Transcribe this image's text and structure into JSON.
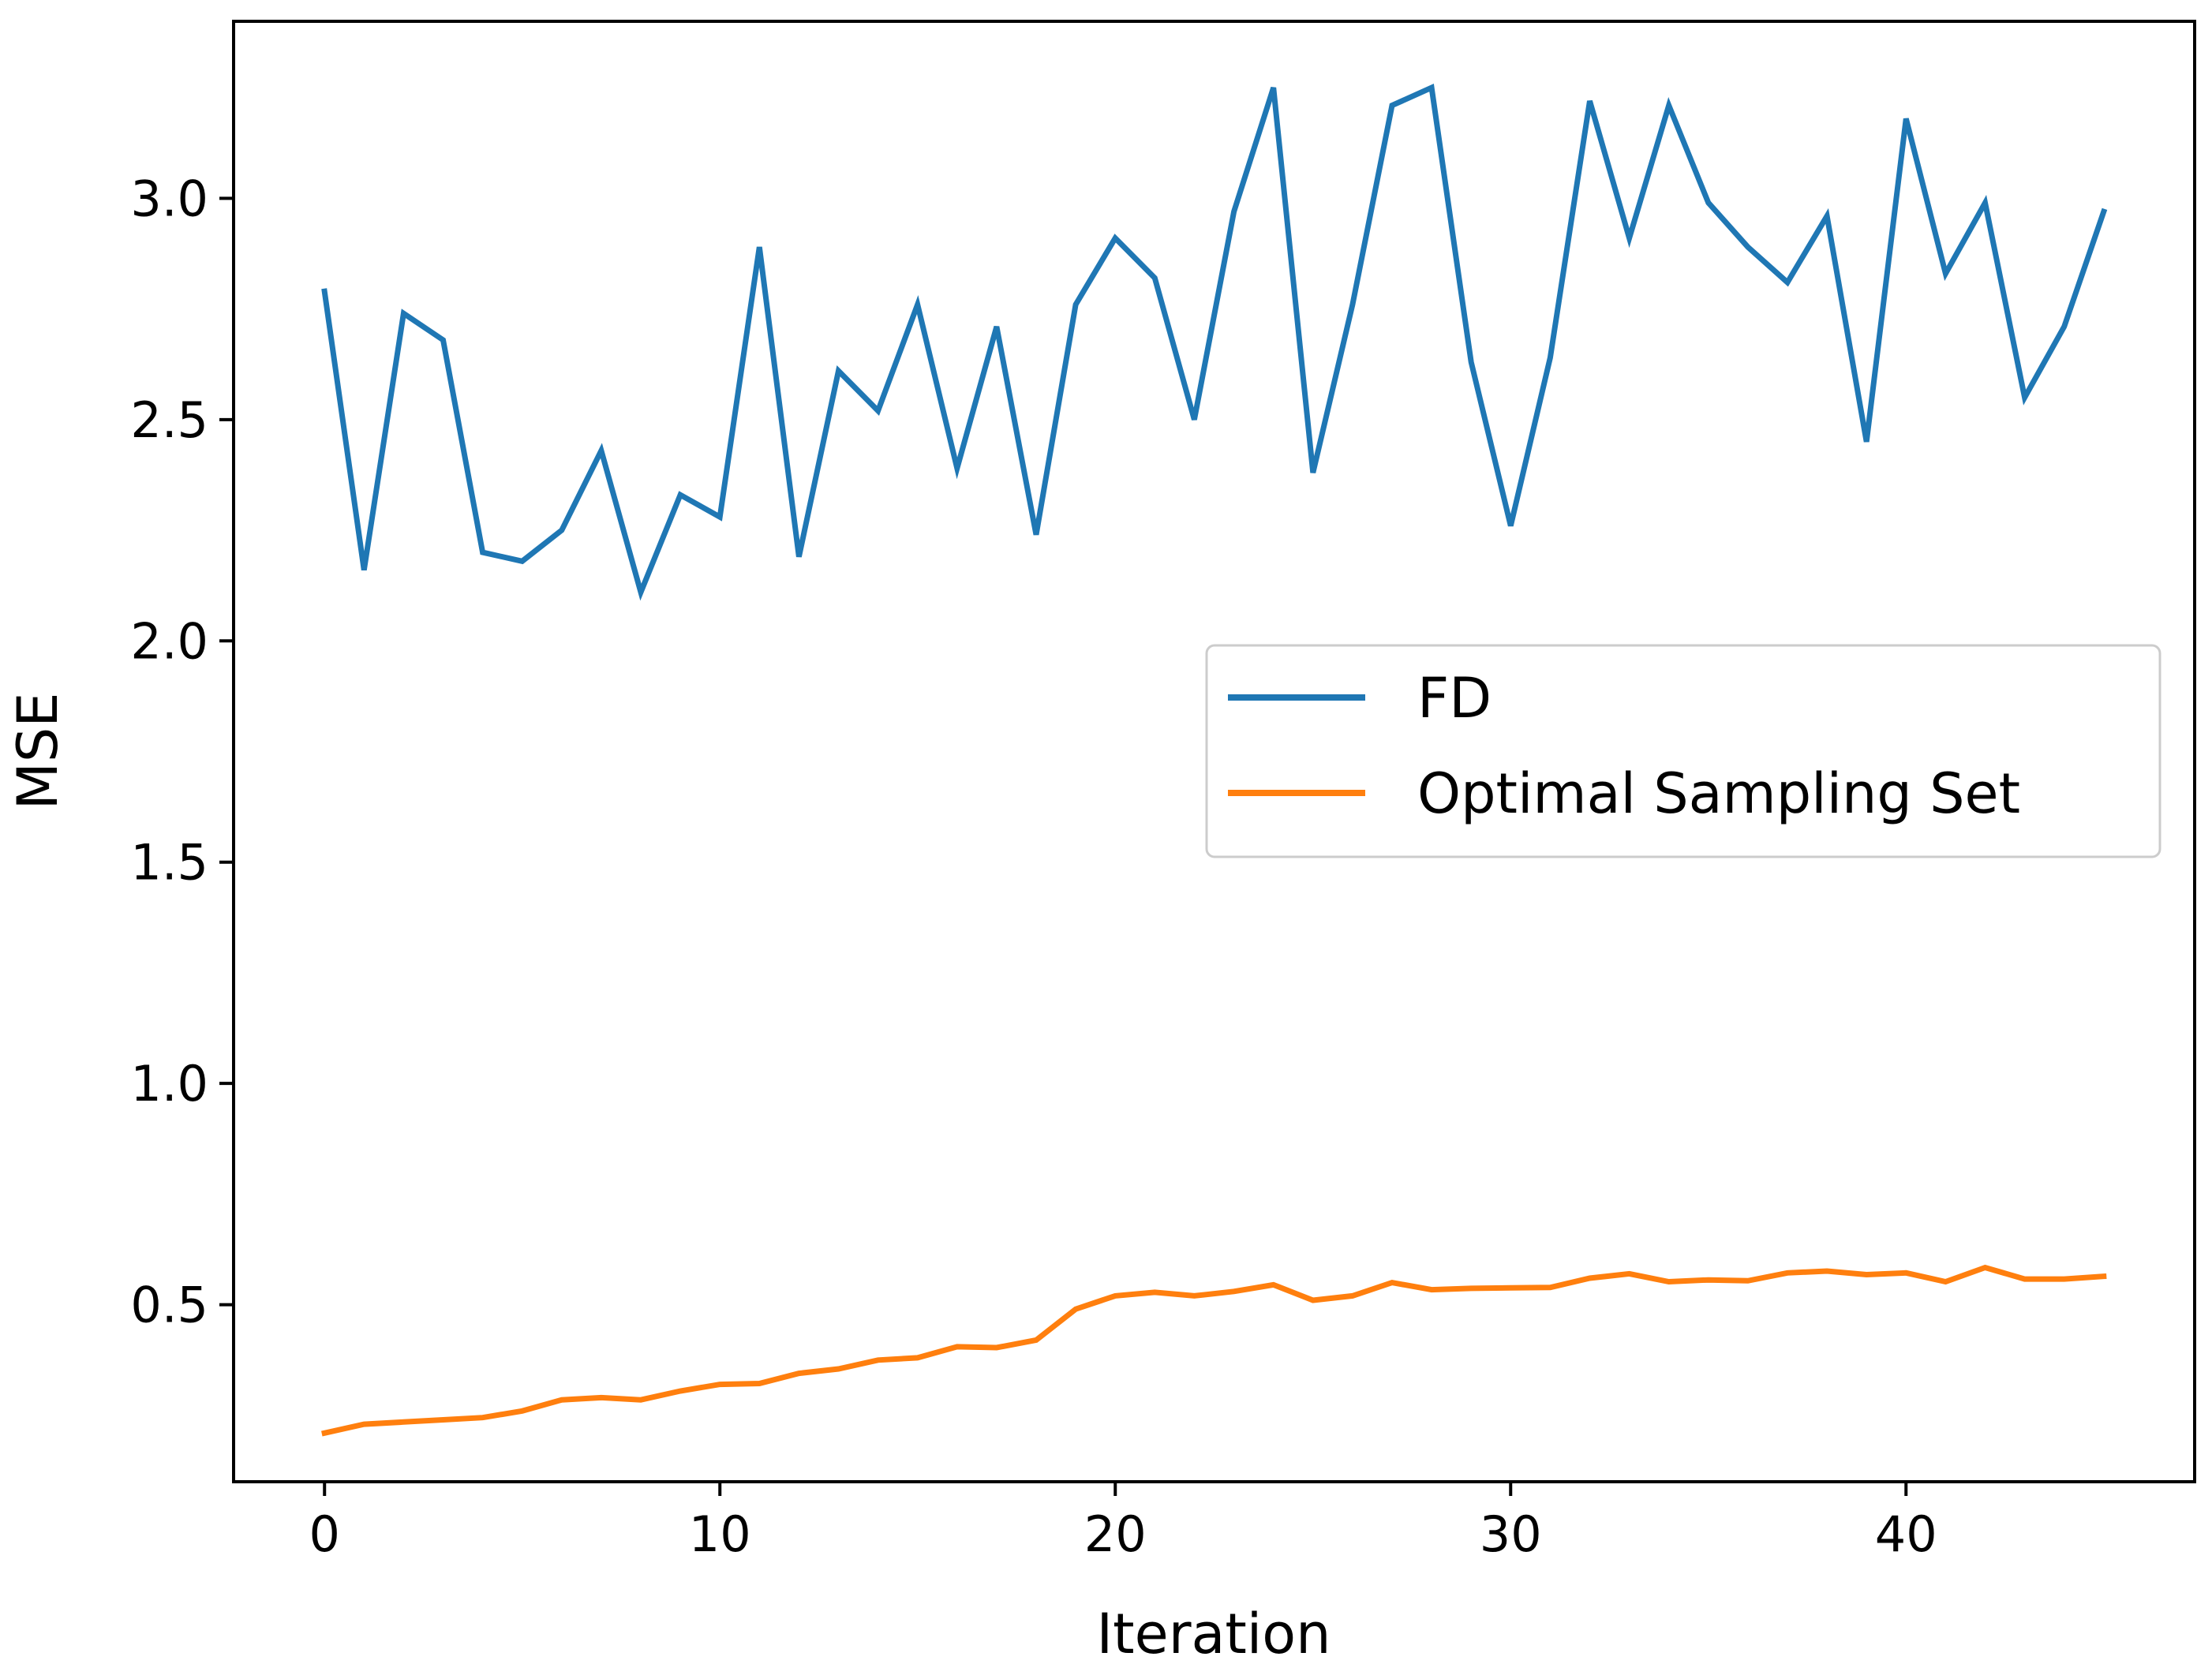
{
  "chart_data": {
    "type": "line",
    "xlabel": "Iteration",
    "ylabel": "MSE",
    "xlim": [
      -2.3,
      47.3
    ],
    "ylim": [
      0.1,
      3.4
    ],
    "xticks": [
      0,
      10,
      20,
      30,
      40
    ],
    "yticks": [
      0.5,
      1.0,
      1.5,
      2.0,
      2.5,
      3.0
    ],
    "xtick_labels": [
      "0",
      "10",
      "20",
      "30",
      "40"
    ],
    "ytick_labels": [
      "0.5",
      "1.0",
      "1.5",
      "2.0",
      "2.5",
      "3.0"
    ],
    "grid": false,
    "legend_position": "center-right",
    "x": [
      0,
      1,
      2,
      3,
      4,
      5,
      6,
      7,
      8,
      9,
      10,
      11,
      12,
      13,
      14,
      15,
      16,
      17,
      18,
      19,
      20,
      21,
      22,
      23,
      24,
      25,
      26,
      27,
      28,
      29,
      30,
      31,
      32,
      33,
      34,
      35,
      36,
      37,
      38,
      39,
      40,
      41,
      42,
      43,
      44,
      45
    ],
    "series": [
      {
        "name": "FD",
        "color": "#1f77b4",
        "values": [
          2.79,
          2.16,
          2.74,
          2.68,
          2.2,
          2.18,
          2.25,
          2.43,
          2.11,
          2.33,
          2.28,
          2.89,
          2.19,
          2.61,
          2.52,
          2.76,
          2.39,
          2.71,
          2.24,
          2.76,
          2.91,
          2.82,
          2.5,
          2.97,
          3.25,
          2.38,
          2.76,
          3.21,
          3.25,
          2.63,
          2.26,
          2.64,
          3.22,
          2.91,
          3.21,
          2.99,
          2.89,
          2.81,
          2.96,
          2.45,
          3.18,
          2.83,
          2.99,
          2.55,
          2.71,
          2.97
        ]
      },
      {
        "name": "Optimal Sampling Set",
        "color": "#ff7f0e",
        "values": [
          0.21,
          0.23,
          0.235,
          0.24,
          0.245,
          0.26,
          0.285,
          0.29,
          0.285,
          0.305,
          0.32,
          0.322,
          0.345,
          0.355,
          0.375,
          0.38,
          0.405,
          0.403,
          0.42,
          0.49,
          0.52,
          0.528,
          0.52,
          0.53,
          0.545,
          0.51,
          0.52,
          0.55,
          0.534,
          0.537,
          0.538,
          0.539,
          0.56,
          0.57,
          0.552,
          0.556,
          0.554,
          0.572,
          0.576,
          0.568,
          0.572,
          0.552,
          0.584,
          0.558,
          0.558,
          0.564
        ]
      }
    ]
  }
}
